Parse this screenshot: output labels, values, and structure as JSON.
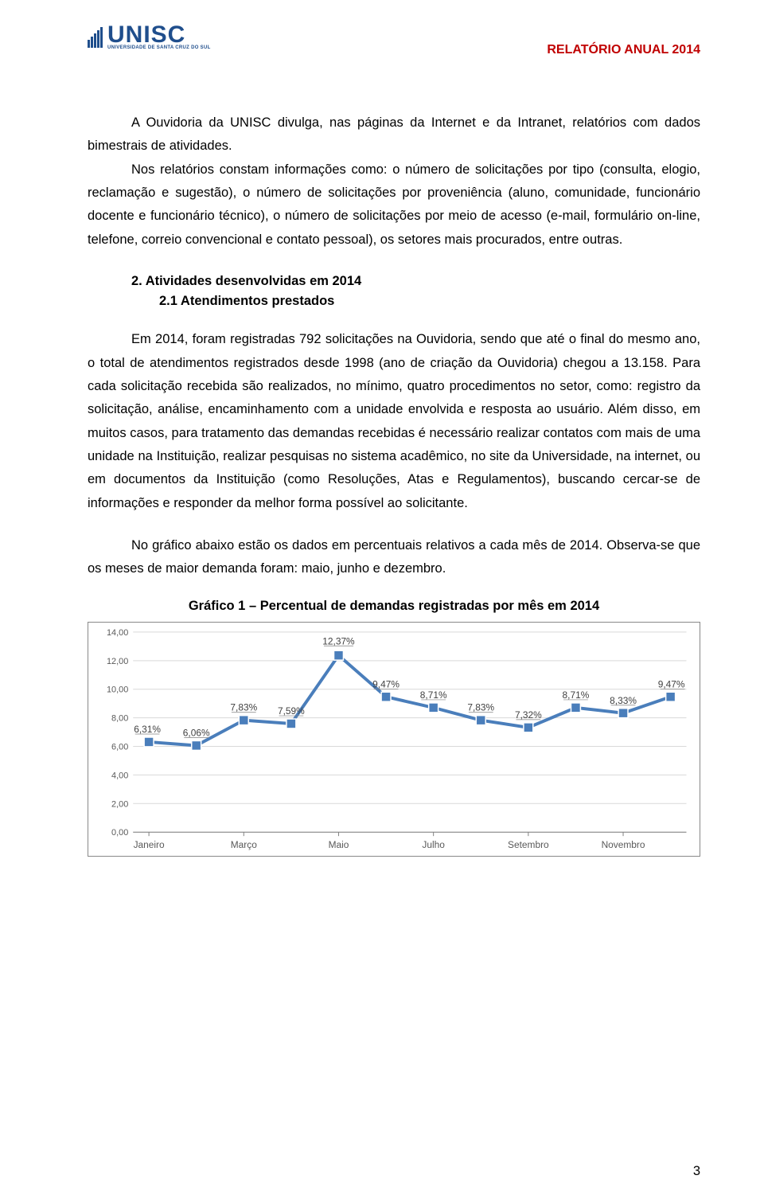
{
  "header": {
    "logo_main": "UNISC",
    "logo_sub": "UNIVERSIDADE DE SANTA CRUZ DO SUL",
    "report_title": "RELATÓRIO ANUAL 2014"
  },
  "para1": "A Ouvidoria da UNISC divulga, nas páginas da Internet e da Intranet, relatórios com dados bimestrais de atividades.",
  "para2": "Nos relatórios constam informações como: o número de solicitações por tipo (consulta, elogio, reclamação e sugestão), o número de solicitações por proveniência (aluno, comunidade, funcionário docente e funcionário técnico), o número de solicitações por meio de acesso (e-mail, formulário on-line, telefone, correio convencional e contato pessoal), os setores mais procurados, entre outras.",
  "section2": "2. Atividades desenvolvidas em 2014",
  "section21": "2.1 Atendimentos prestados",
  "para3": "Em 2014, foram registradas 792 solicitações na Ouvidoria, sendo que até o final do mesmo ano, o total de atendimentos registrados desde 1998 (ano de criação da Ouvidoria) chegou a 13.158. Para cada solicitação recebida são realizados, no mínimo, quatro procedimentos no setor, como: registro da solicitação, análise, encaminhamento com a unidade envolvida e resposta ao usuário. Além disso, em muitos casos, para tratamento das demandas recebidas é necessário realizar contatos com mais de uma unidade na Instituição, realizar pesquisas no sistema acadêmico, no site da Universidade, na internet, ou em documentos da Instituição (como Resoluções, Atas e Regulamentos), buscando cercar-se de informações e responder da melhor forma possível ao solicitante.",
  "para4": "No gráfico abaixo estão os dados em percentuais relativos a cada mês de 2014. Observa-se que os meses de maior demanda foram: maio, junho e dezembro.",
  "chart": {
    "title": "Gráfico 1 – Percentual de demandas registradas por mês em 2014",
    "type": "line",
    "line_color": "#4a7ebb",
    "marker_fill": "#4a7ebb",
    "marker_stroke": "#ffffff",
    "marker_size": 12,
    "line_width": 4,
    "grid_color": "#d9d9d9",
    "axis_text_color": "#595959",
    "background": "#ffffff",
    "ylim": [
      0,
      14
    ],
    "ytick_step": 2,
    "yticks": [
      "0,00",
      "2,00",
      "4,00",
      "6,00",
      "8,00",
      "10,00",
      "12,00",
      "14,00"
    ],
    "x_categories": [
      "Janeiro",
      "Março",
      "Maio",
      "Julho",
      "Setembro",
      "Novembro"
    ],
    "values": [
      6.31,
      6.06,
      7.83,
      7.59,
      12.37,
      9.47,
      8.71,
      7.83,
      7.32,
      8.71,
      8.33,
      9.47
    ],
    "value_labels": [
      "6,31%",
      "6,06%",
      "7,83%",
      "7,59%",
      "12,37%",
      "9,47%",
      "8,71%",
      "7,83%",
      "7,32%",
      "8,71%",
      "8,33%",
      "9,47%"
    ]
  },
  "page_number": "3"
}
